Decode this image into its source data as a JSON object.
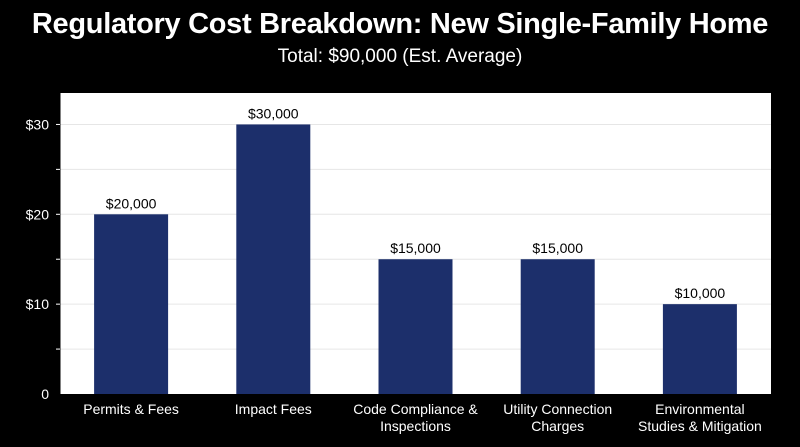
{
  "chart_data": {
    "type": "bar",
    "title": "Regulatory Cost Breakdown: New Single-Family Home",
    "subtitle": "Total: $90,000 (Est. Average)",
    "xlabel": "",
    "ylabel": "",
    "categories": [
      [
        "Permits & Fees"
      ],
      [
        "Impact Fees"
      ],
      [
        "Code Compliance &",
        "Inspections"
      ],
      [
        "Utility Connection",
        "Charges"
      ],
      [
        "Environmental",
        "Studies & Mitigation"
      ]
    ],
    "values": [
      20,
      30,
      15,
      15,
      10
    ],
    "data_labels": [
      "$20,000",
      "$30,000",
      "$15,000",
      "$15,000",
      "$10,000"
    ],
    "yticks": [
      {
        "value": 0,
        "label": "0"
      },
      {
        "value": 10,
        "label": "$10"
      },
      {
        "value": 20,
        "label": "$20"
      },
      {
        "value": 30,
        "label": "$30"
      }
    ],
    "ylim": [
      0,
      33.5
    ],
    "grid": true,
    "colors": {
      "bar": "#1c2f6b",
      "plot_background": "#ffffff",
      "page_background": "#000000",
      "grid": "#e6e6e6"
    }
  }
}
